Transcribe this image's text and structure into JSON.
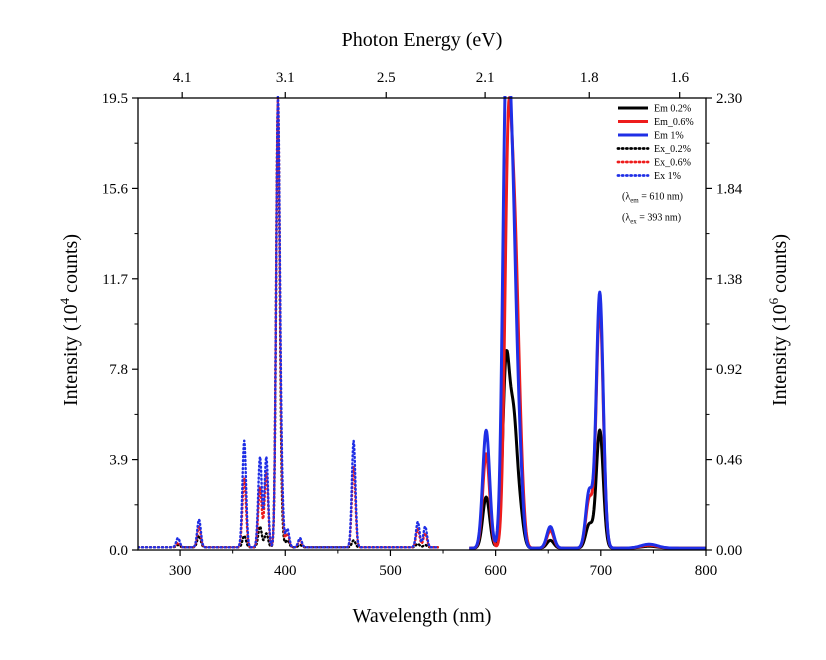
{
  "chart_data": {
    "type": "line",
    "x_axis": {
      "label": "Wavelength (nm)",
      "range": [
        260,
        800
      ],
      "ticks": [
        300,
        400,
        500,
        600,
        700,
        800
      ]
    },
    "y_left_axis": {
      "label_pre": "Intensity (10",
      "label_sup": "4",
      "label_post": " counts)",
      "range": [
        0,
        19.5
      ],
      "ticks": [
        "0.0",
        "3.9",
        "7.8",
        "11.7",
        "15.6",
        "19.5"
      ]
    },
    "y_right_axis": {
      "label_pre": "Intensity (10",
      "label_sup": "6",
      "label_post": " counts)",
      "range": [
        0,
        2.3
      ],
      "ticks": [
        "0.00",
        "0.46",
        "0.92",
        "1.38",
        "1.84",
        "2.30"
      ]
    },
    "top_axis": {
      "label": "Photon Energy (eV)",
      "ticks": [
        {
          "label": "4.1",
          "wavelength": 302
        },
        {
          "label": "3.1",
          "wavelength": 400
        },
        {
          "label": "2.5",
          "wavelength": 496
        },
        {
          "label": "2.1",
          "wavelength": 590
        },
        {
          "label": "1.8",
          "wavelength": 689
        },
        {
          "label": "1.6",
          "wavelength": 775
        }
      ]
    },
    "legend_position": "top-right",
    "legend_notes": [
      {
        "pre": "(λ",
        "sub": "em",
        "post": " = 610 nm)"
      },
      {
        "pre": "(λ",
        "sub": "ex",
        "post": " = 393 nm)"
      }
    ],
    "series": [
      {
        "name": "Em  0.2%",
        "color": "#000000",
        "style": "solid",
        "axis": "right",
        "peaks": [
          [
            591,
            0.26
          ],
          [
            610,
            0.93
          ],
          [
            617,
            0.6
          ],
          [
            623,
            0.18
          ],
          [
            652,
            0.04
          ],
          [
            689,
            0.12
          ],
          [
            699,
            0.6
          ],
          [
            746,
            0.01
          ]
        ]
      },
      {
        "name": "Em_0.6%",
        "color": "#ee1c1c",
        "style": "solid",
        "axis": "right",
        "peaks": [
          [
            591,
            0.48
          ],
          [
            612,
            1.97
          ],
          [
            618,
            1.28
          ],
          [
            623,
            0.42
          ],
          [
            652,
            0.09
          ],
          [
            689,
            0.25
          ],
          [
            699,
            1.23
          ],
          [
            746,
            0.015
          ]
        ]
      },
      {
        "name": "Em  1%",
        "color": "#1f2fe6",
        "style": "solid",
        "axis": "right",
        "peaks": [
          [
            591,
            0.6
          ],
          [
            610,
            2.3
          ],
          [
            616,
            1.5
          ],
          [
            622,
            0.5
          ],
          [
            652,
            0.11
          ],
          [
            689,
            0.29
          ],
          [
            699,
            1.3
          ],
          [
            746,
            0.02
          ]
        ]
      },
      {
        "name": "Ex_0.2%",
        "color": "#000000",
        "style": "dotted",
        "axis": "left",
        "peaks": [
          [
            298,
            0.1
          ],
          [
            318,
            0.5
          ],
          [
            361,
            0.5
          ],
          [
            376,
            0.9
          ],
          [
            382,
            0.6
          ],
          [
            393,
            18.8
          ],
          [
            396,
            1.0
          ],
          [
            402,
            0.3
          ],
          [
            414,
            0.1
          ],
          [
            465,
            0.3
          ],
          [
            526,
            0.15
          ],
          [
            533,
            0.1
          ]
        ]
      },
      {
        "name": "Ex_0.6%",
        "color": "#ee1c1c",
        "style": "dotted",
        "axis": "left",
        "peaks": [
          [
            298,
            0.2
          ],
          [
            318,
            0.9
          ],
          [
            361,
            3.0
          ],
          [
            376,
            2.6
          ],
          [
            382,
            3.2
          ],
          [
            393,
            19.0
          ],
          [
            396,
            2.0
          ],
          [
            402,
            0.6
          ],
          [
            414,
            0.3
          ],
          [
            465,
            3.5
          ],
          [
            526,
            0.8
          ],
          [
            533,
            0.6
          ]
        ]
      },
      {
        "name": "Ex  1%",
        "color": "#1f2fe6",
        "style": "dotted",
        "axis": "left",
        "peaks": [
          [
            298,
            0.4
          ],
          [
            318,
            1.2
          ],
          [
            361,
            4.6
          ],
          [
            376,
            3.9
          ],
          [
            382,
            3.9
          ],
          [
            393,
            18.8
          ],
          [
            396,
            3.0
          ],
          [
            402,
            0.8
          ],
          [
            414,
            0.4
          ],
          [
            465,
            4.6
          ],
          [
            526,
            1.1
          ],
          [
            533,
            0.9
          ]
        ]
      }
    ]
  }
}
